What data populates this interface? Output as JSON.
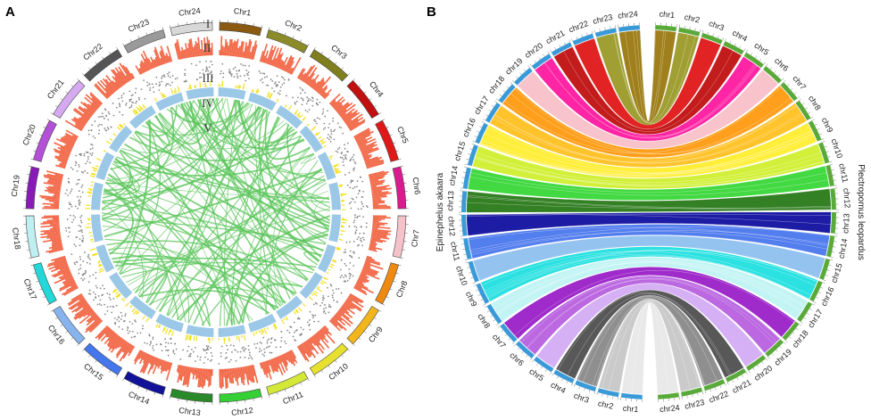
{
  "panel_a": {
    "label": "A",
    "track_labels": [
      "I",
      "II",
      "III",
      "IV",
      "V"
    ],
    "chromosomes": [
      {
        "name": "Chr1",
        "color": "#8a5a12"
      },
      {
        "name": "Chr2",
        "color": "#8b8b2a"
      },
      {
        "name": "Chr3",
        "color": "#7f7f1e"
      },
      {
        "name": "Chr4",
        "color": "#c01010"
      },
      {
        "name": "Chr5",
        "color": "#e01818"
      },
      {
        "name": "Chr6",
        "color": "#d81b8e"
      },
      {
        "name": "Chr7",
        "color": "#f4c2c8"
      },
      {
        "name": "Chr8",
        "color": "#ee8a10"
      },
      {
        "name": "Chr9",
        "color": "#f2b51c"
      },
      {
        "name": "Chr10",
        "color": "#e8e030"
      },
      {
        "name": "Chr11",
        "color": "#d4e838"
      },
      {
        "name": "Chr12",
        "color": "#35d035"
      },
      {
        "name": "Chr13",
        "color": "#2a8a2a"
      },
      {
        "name": "Chr14",
        "color": "#111199"
      },
      {
        "name": "Chr15",
        "color": "#4477ee"
      },
      {
        "name": "Chr16",
        "color": "#88b4ee"
      },
      {
        "name": "Chr17",
        "color": "#22d8d8"
      },
      {
        "name": "Chr18",
        "color": "#bfeff0"
      },
      {
        "name": "Chr19",
        "color": "#8a1ab8"
      },
      {
        "name": "Chr20",
        "color": "#b450d8"
      },
      {
        "name": "Chr21",
        "color": "#d6aaf0"
      },
      {
        "name": "Chr22",
        "color": "#555555"
      },
      {
        "name": "Chr23",
        "color": "#9a9a9a"
      },
      {
        "name": "Chr24",
        "color": "#d8d8d8"
      }
    ]
  },
  "panel_b": {
    "label": "B",
    "left_species": "Epinephelus akaara",
    "right_species": "Plectropomus leopardus",
    "left_chromosomes": [
      "chr1",
      "chr2",
      "chr3",
      "chr4",
      "chr5",
      "chr6",
      "chr7",
      "chr8",
      "chr9",
      "chr10",
      "chr11",
      "chr12",
      "chr13",
      "chr14",
      "chr15",
      "chr16",
      "chr17",
      "chr18",
      "chr19",
      "chr20",
      "chr21",
      "chr22",
      "chr23",
      "chr24"
    ],
    "right_chromosomes": [
      "chr1",
      "chr2",
      "chr3",
      "chr4",
      "chr5",
      "chr6",
      "chr7",
      "chr8",
      "chr9",
      "chr10",
      "chr11",
      "chr12",
      "chr13",
      "chr14",
      "chr15",
      "chr16",
      "chr17",
      "chr18",
      "chr19",
      "chr20",
      "chr21",
      "chr22",
      "chr23",
      "chr24"
    ],
    "synteny_colors": [
      "#9a7a10",
      "#9a9a2a",
      "#e01818",
      "#c01010",
      "#ff1aa0",
      "#f8c0c8",
      "#ff9a10",
      "#ffc020",
      "#ffee30",
      "#d0f030",
      "#38d838",
      "#2a7a1a",
      "#1010a0",
      "#4a78ee",
      "#90c0f0",
      "#20e0e0",
      "#c0f4f4",
      "#9a20c8",
      "#b860e0",
      "#d4acf4",
      "#505050",
      "#8a8a8a",
      "#c8c8c8",
      "#e8e8e8"
    ],
    "left_ring_color": "#3a9ad8",
    "right_ring_color": "#5aaa3a"
  }
}
